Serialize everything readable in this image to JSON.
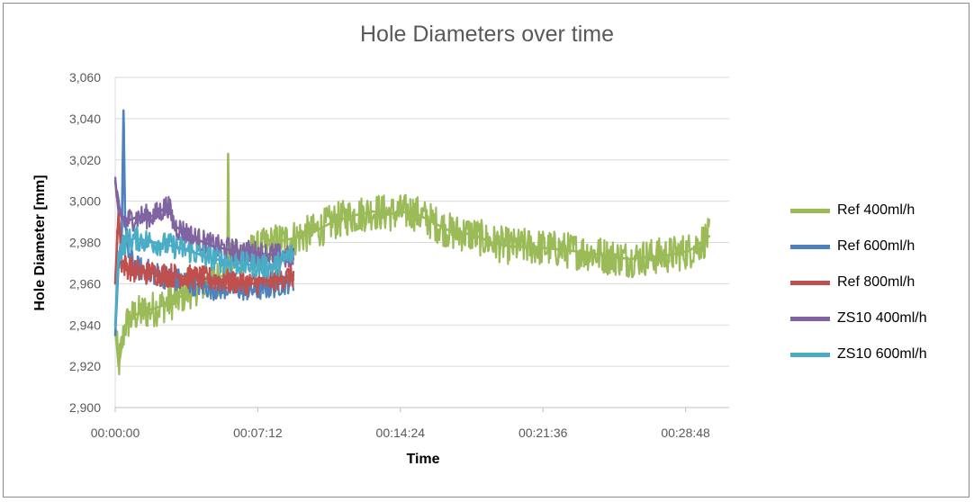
{
  "chart_data": {
    "type": "line",
    "title": "Hole Diameters over time",
    "xlabel": "Time",
    "ylabel": "Hole Diameter [mm]",
    "x_ticks": [
      "00:00:00",
      "00:07:12",
      "00:14:24",
      "00:21:36",
      "00:28:48"
    ],
    "xlim": [
      "00:00:00",
      "00:31:00"
    ],
    "y_ticks": [
      "2,900",
      "2,920",
      "2,940",
      "2,960",
      "2,980",
      "3,000",
      "3,020",
      "3,040",
      "3,060"
    ],
    "ylim": [
      2.9,
      3.06
    ],
    "grid": "horizontal",
    "legend_position": "right",
    "series": [
      {
        "name": "Ref 400ml/h",
        "color": "#9bbb59",
        "x": [
          "00:00:00",
          "00:00:10",
          "00:00:30",
          "00:01:00",
          "00:02:00",
          "00:03:00",
          "00:04:00",
          "00:05:00",
          "00:05:40",
          "00:05:42",
          "00:05:45",
          "00:06:00",
          "00:07:00",
          "00:08:00",
          "00:09:00",
          "00:10:00",
          "00:11:00",
          "00:12:00",
          "00:13:00",
          "00:14:00",
          "00:15:00",
          "00:16:00",
          "00:17:00",
          "00:18:00",
          "00:19:00",
          "00:20:00",
          "00:21:00",
          "00:22:00",
          "00:23:00",
          "00:24:00",
          "00:25:00",
          "00:26:00",
          "00:27:00",
          "00:28:00",
          "00:29:00",
          "00:30:00"
        ],
        "values": [
          2.94,
          2.92,
          2.94,
          2.945,
          2.948,
          2.952,
          2.958,
          2.962,
          2.965,
          3.023,
          2.97,
          2.972,
          2.976,
          2.98,
          2.982,
          2.985,
          2.99,
          2.993,
          2.995,
          2.994,
          2.995,
          2.99,
          2.985,
          2.984,
          2.98,
          2.978,
          2.978,
          2.977,
          2.976,
          2.975,
          2.973,
          2.972,
          2.973,
          2.974,
          2.976,
          2.983
        ]
      },
      {
        "name": "Ref 600ml/h",
        "color": "#4f81bd",
        "x": [
          "00:00:00",
          "00:00:10",
          "00:00:20",
          "00:00:25",
          "00:00:30",
          "00:00:40",
          "00:01:00",
          "00:02:00",
          "00:03:00",
          "00:04:00",
          "00:05:00",
          "00:06:00",
          "00:07:00",
          "00:08:00",
          "00:09:00"
        ],
        "values": [
          2.935,
          2.97,
          2.985,
          3.044,
          2.99,
          2.975,
          2.968,
          2.965,
          2.962,
          2.96,
          2.958,
          2.958,
          2.957,
          2.959,
          2.962
        ]
      },
      {
        "name": "Ref 800ml/h",
        "color": "#c0504d",
        "x": [
          "00:00:00",
          "00:00:10",
          "00:00:20",
          "00:01:00",
          "00:02:00",
          "00:03:00",
          "00:04:00",
          "00:05:00",
          "00:06:00",
          "00:07:00",
          "00:08:00",
          "00:09:00"
        ],
        "values": [
          2.96,
          2.995,
          2.97,
          2.966,
          2.965,
          2.964,
          2.963,
          2.962,
          2.961,
          2.96,
          2.962,
          2.964
        ]
      },
      {
        "name": "ZS10 400ml/h",
        "color": "#8064a2",
        "x": [
          "00:00:00",
          "00:00:10",
          "00:00:30",
          "00:01:00",
          "00:02:00",
          "00:02:40",
          "00:03:00",
          "00:04:00",
          "00:05:00",
          "00:06:00",
          "00:07:00",
          "00:08:00",
          "00:09:00"
        ],
        "values": [
          3.01,
          2.995,
          2.99,
          2.992,
          2.993,
          2.998,
          2.988,
          2.982,
          2.978,
          2.976,
          2.975,
          2.974,
          2.972
        ]
      },
      {
        "name": "ZS10 600ml/h",
        "color": "#4bacc6",
        "x": [
          "00:00:00",
          "00:00:10",
          "00:00:30",
          "00:01:00",
          "00:02:00",
          "00:03:00",
          "00:04:00",
          "00:05:00",
          "00:06:00",
          "00:07:00",
          "00:08:00",
          "00:09:00"
        ],
        "values": [
          2.94,
          2.975,
          2.98,
          2.982,
          2.98,
          2.978,
          2.975,
          2.972,
          2.97,
          2.969,
          2.968,
          2.975
        ]
      }
    ]
  }
}
